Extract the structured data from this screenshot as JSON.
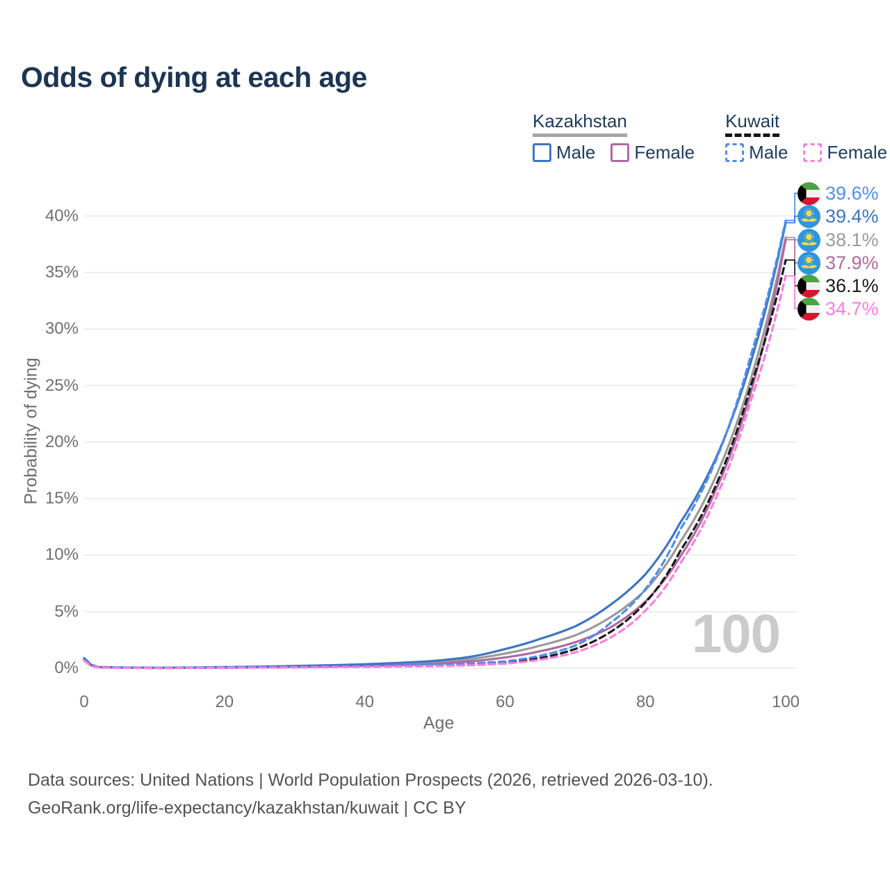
{
  "title": "Odds of dying at each age",
  "legend": {
    "groups": [
      {
        "country": "Kazakhstan",
        "line_style": "solid",
        "underline_color": "#a6a6a6",
        "items": [
          {
            "label": "Male",
            "color": "#3d76c4"
          },
          {
            "label": "Female",
            "color": "#b1689f"
          }
        ]
      },
      {
        "country": "Kuwait",
        "line_style": "dashed",
        "underline_color": "#161616",
        "items": [
          {
            "label": "Male",
            "color": "#4f8df0"
          },
          {
            "label": "Female",
            "color": "#ff7ce0"
          }
        ]
      }
    ]
  },
  "end_labels": [
    {
      "value": "39.6%",
      "flag": "kuwait",
      "series": "Kuwait Male",
      "color": "#4f8df0"
    },
    {
      "value": "39.4%",
      "flag": "kazakhstan",
      "series": "Kazakhstan Male",
      "color": "#3d76c4"
    },
    {
      "value": "38.1%",
      "flag": "kazakhstan",
      "series": "Kazakhstan Both sexes",
      "color": "#9a9a9a"
    },
    {
      "value": "37.9%",
      "flag": "kazakhstan",
      "series": "Kazakhstan Female",
      "color": "#b1689f"
    },
    {
      "value": "36.1%",
      "flag": "kuwait",
      "series": "Kuwait Both sexes",
      "color": "#1a1a1a"
    },
    {
      "value": "34.7%",
      "flag": "kuwait",
      "series": "Kuwait Female",
      "color": "#ff7ce0"
    }
  ],
  "watermark": "100",
  "footer": {
    "line1": "Data sources: United Nations | World Population Prospects (2026, retrieved 2026-03-10).",
    "line2": "GeoRank.org/life-expectancy/kazakhstan/kuwait | CC BY"
  },
  "chart_data": {
    "type": "line",
    "title": "Odds of dying at each age",
    "xlabel": "Age",
    "ylabel": "Probability of dying",
    "xlim": [
      0,
      100
    ],
    "ylim_pct": [
      0,
      41
    ],
    "grid": "horizontal",
    "legend_position": "top-right",
    "x_ticks": [
      0,
      20,
      40,
      60,
      80,
      100
    ],
    "x_tick_labels": [
      "0",
      "20",
      "40",
      "60",
      "80",
      "100"
    ],
    "y_ticks_pct": [
      0,
      5,
      10,
      15,
      20,
      25,
      30,
      35,
      40
    ],
    "y_tick_labels": [
      "0%",
      "5%",
      "10%",
      "15%",
      "20%",
      "25%",
      "30%",
      "35%",
      "40%"
    ],
    "ages": [
      0,
      2,
      10,
      20,
      30,
      40,
      50,
      55,
      60,
      65,
      70,
      75,
      80,
      85,
      90,
      95,
      100
    ],
    "series": [
      {
        "id": "kz_male",
        "name": "Kazakhstan Male",
        "color": "#3d76c4",
        "dash": "solid",
        "end_label": "39.4%",
        "values_pct": [
          0.9,
          0.1,
          0.04,
          0.1,
          0.2,
          0.35,
          0.65,
          1.0,
          1.7,
          2.6,
          3.7,
          5.6,
          8.3,
          12.9,
          18.5,
          27.0,
          39.4
        ]
      },
      {
        "id": "kz_female",
        "name": "Kazakhstan Female",
        "color": "#b1689f",
        "dash": "solid",
        "end_label": "37.9%",
        "values_pct": [
          0.7,
          0.08,
          0.03,
          0.05,
          0.11,
          0.2,
          0.38,
          0.6,
          0.95,
          1.5,
          2.3,
          3.6,
          5.9,
          9.9,
          15.7,
          24.3,
          37.9
        ]
      },
      {
        "id": "kz_both",
        "name": "Kazakhstan Both sexes",
        "color": "#9a9a9a",
        "dash": "solid",
        "end_label": "38.1%",
        "values_pct": [
          0.8,
          0.09,
          0.03,
          0.08,
          0.16,
          0.28,
          0.52,
          0.8,
          1.3,
          2.0,
          2.9,
          4.5,
          6.9,
          11.2,
          16.9,
          25.5,
          38.1
        ]
      },
      {
        "id": "kw_male",
        "name": "Kuwait Male",
        "color": "#4f8df0",
        "dash": "dashed",
        "end_label": "39.6%",
        "values_pct": [
          0.75,
          0.07,
          0.03,
          0.08,
          0.12,
          0.18,
          0.3,
          0.42,
          0.6,
          1.1,
          2.0,
          4.0,
          7.0,
          12.3,
          18.3,
          27.6,
          39.6
        ]
      },
      {
        "id": "kw_female",
        "name": "Kuwait Female",
        "color": "#ff7ce0",
        "dash": "dashed",
        "end_label": "34.7%",
        "values_pct": [
          0.65,
          0.06,
          0.02,
          0.04,
          0.07,
          0.11,
          0.18,
          0.26,
          0.4,
          0.75,
          1.4,
          2.7,
          5.1,
          9.3,
          15.0,
          23.6,
          34.7
        ]
      },
      {
        "id": "kw_both",
        "name": "Kuwait Both sexes",
        "color": "#1a1a1a",
        "dash": "dashed",
        "end_label": "36.1%",
        "values_pct": [
          0.7,
          0.07,
          0.025,
          0.06,
          0.09,
          0.14,
          0.24,
          0.34,
          0.5,
          0.9,
          1.7,
          3.2,
          5.8,
          10.4,
          16.1,
          24.9,
          36.1
        ]
      }
    ]
  }
}
